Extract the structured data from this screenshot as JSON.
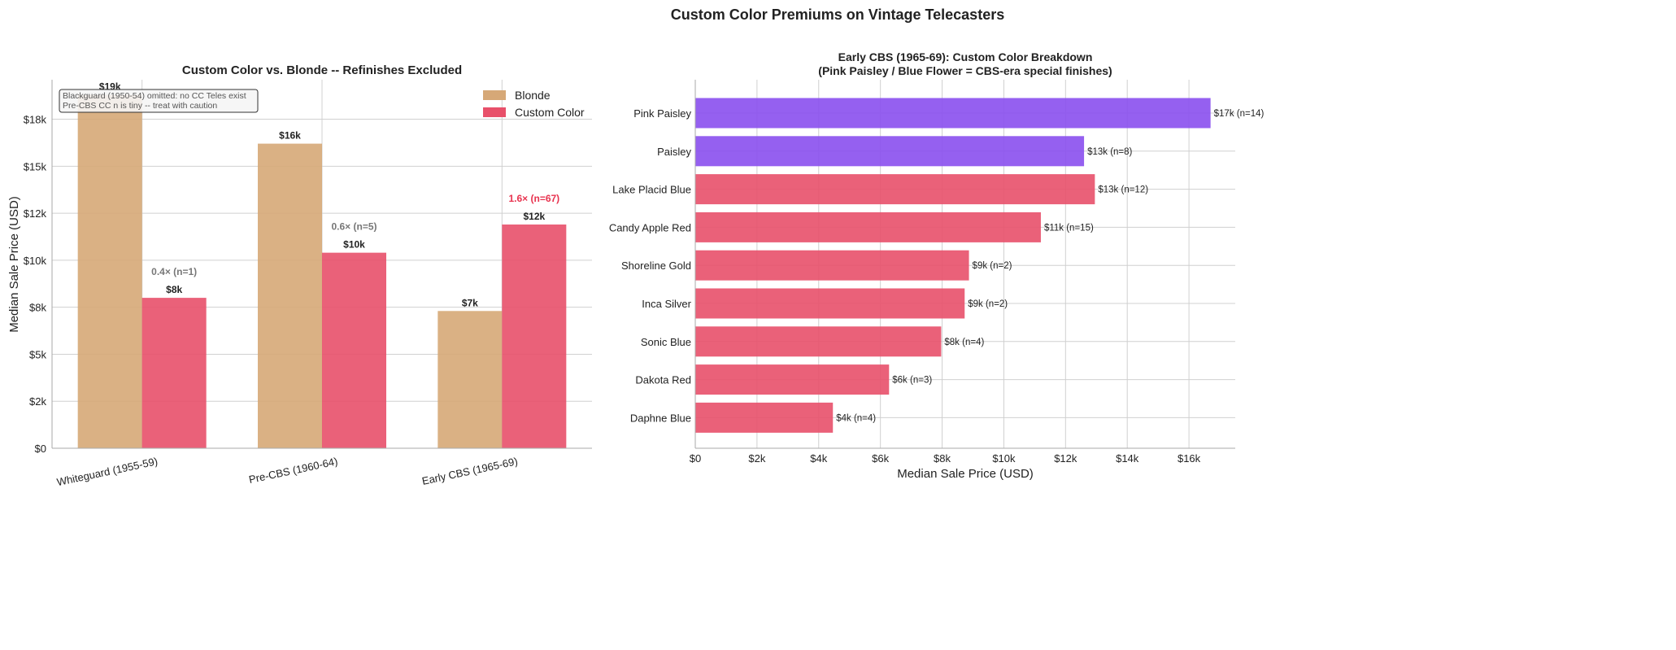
{
  "suptitle": "Custom Color Premiums on Vintage Telecasters",
  "colors": {
    "blonde": "#d6a877",
    "custom": "#e8506a",
    "special": "#8a4fee",
    "ratio_low": "#777777",
    "ratio_high": "#e8334f"
  },
  "chart_data": [
    {
      "type": "bar",
      "title": "Custom Color vs. Blonde -- Refinishes Excluded",
      "xlabel": "",
      "ylabel": "Median Sale Price (USD)",
      "ylim": [
        0,
        19600
      ],
      "yticks": [
        0,
        2500,
        5000,
        7500,
        10000,
        12500,
        15000,
        17500
      ],
      "ytick_labels": [
        "$0",
        "$2k",
        "$5k",
        "$8k",
        "$10k",
        "$12k",
        "$15k",
        "$18k"
      ],
      "categories": [
        "Whiteguard (1955-59)",
        "Pre-CBS (1960-64)",
        "Early CBS (1965-69)"
      ],
      "series": [
        {
          "name": "Blonde",
          "values": [
            18800,
            16200,
            7300
          ],
          "labels": [
            "$19k",
            "$16k",
            "$7k"
          ]
        },
        {
          "name": "Custom Color",
          "values": [
            8000,
            10400,
            11900
          ],
          "labels": [
            "$8k",
            "$10k",
            "$12k"
          ]
        }
      ],
      "ratio_labels": [
        "0.4× (n=1)",
        "0.6× (n=5)",
        "1.6× (n=67)"
      ],
      "note": [
        "Blackguard (1950-54) omitted: no CC Teles exist",
        "Pre-CBS CC n is tiny -- treat with caution"
      ],
      "legend": "top-right",
      "grid": true
    },
    {
      "type": "bar",
      "orientation": "horizontal",
      "title": "Early CBS (1965-69): Custom Color Breakdown",
      "subtitle": "(Pink Paisley / Blue Flower = CBS-era special finishes)",
      "xlabel": "Median Sale Price (USD)",
      "xlim": [
        0,
        17500
      ],
      "xticks": [
        0,
        2000,
        4000,
        6000,
        8000,
        10000,
        12000,
        14000,
        16000
      ],
      "xtick_labels": [
        "$0",
        "$2k",
        "$4k",
        "$6k",
        "$8k",
        "$10k",
        "$12k",
        "$14k",
        "$16k"
      ],
      "categories": [
        "Pink Paisley",
        "Paisley",
        "Lake Placid Blue",
        "Candy Apple Red",
        "Shoreline Gold",
        "Inca Silver",
        "Sonic Blue",
        "Dakota Red",
        "Daphne Blue"
      ],
      "values": [
        16700,
        12600,
        12950,
        11200,
        8870,
        8730,
        7970,
        6280,
        4460
      ],
      "special": [
        true,
        true,
        false,
        false,
        false,
        false,
        false,
        false,
        false
      ],
      "labels": [
        "$17k (n=14)",
        "$13k (n=8)",
        "$13k (n=12)",
        "$11k (n=15)",
        "$9k (n=2)",
        "$9k (n=2)",
        "$8k (n=4)",
        "$6k (n=3)",
        "$4k (n=4)"
      ],
      "grid": true
    }
  ]
}
